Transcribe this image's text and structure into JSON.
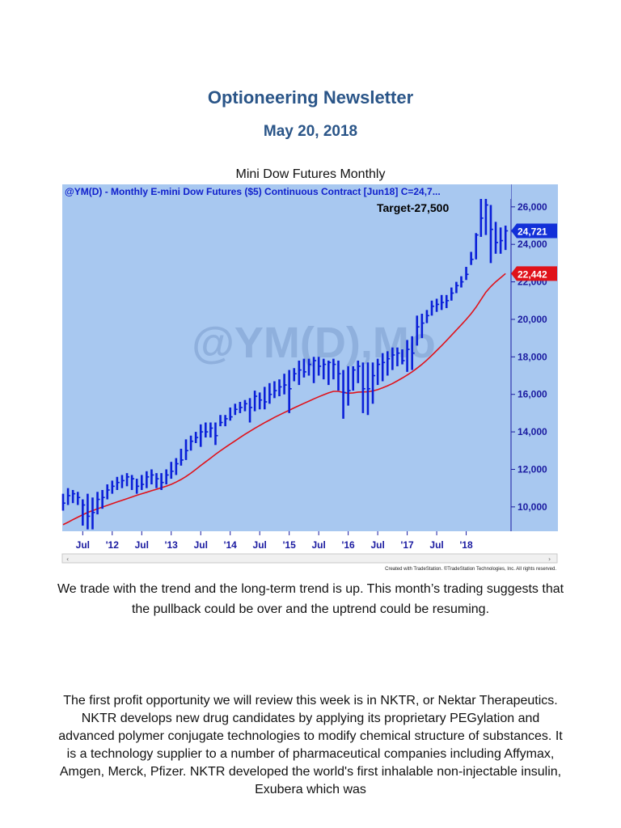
{
  "document": {
    "title": "Optioneering Newsletter",
    "date": "May 20, 2018",
    "chart_caption": "Mini Dow Futures Monthly",
    "paragraph1": "We trade with the trend and the long-term trend is up. This month’s trading suggests that the pullback could be over and the uptrend could be resuming.",
    "paragraph2": "The first profit opportunity we will review this week is in NKTR, or Nektar Therapeutics. NKTR develops new drug candidates by applying its proprietary PEGylation and advanced polymer conjugate technologies to modify chemical structure of substances. It is a technology supplier to a number of pharmaceutical companies including Affymax, Amgen, Merck, Pfizer. NKTR developed the world's first inhalable non-injectable insulin, Exubera which was"
  },
  "chart_data": {
    "type": "ohlc",
    "header": "@YM(D) - Monthly  E-mini Dow Futures ($5) Continuous Contract [Jun18]  C=24,7...",
    "watermark": "@YM(D),Mo",
    "annotation": "Target-27,500",
    "credit": "Created with TradeStation. ©TradeStation Technologies, Inc. All rights reserved.",
    "x_tick_labels": [
      "Jul",
      "'12",
      "Jul",
      "'13",
      "Jul",
      "'14",
      "Jul",
      "'15",
      "Jul",
      "'16",
      "Jul",
      "'17",
      "Jul",
      "'18"
    ],
    "y_tick_labels": [
      "26,000",
      "24,000",
      "22,000",
      "20,000",
      "18,000",
      "16,000",
      "14,000",
      "12,000",
      "10,000"
    ],
    "y_ticks": [
      26000,
      24000,
      22000,
      20000,
      18000,
      16000,
      14000,
      12000,
      10000
    ],
    "ylim": [
      8700,
      27200
    ],
    "last_close": 24721,
    "last_close_label": "24,721",
    "ma_value": 22442,
    "ma_label": "22,442",
    "colors": {
      "background": "#a8c8f0",
      "bars": "#0a1fd8",
      "moving_average": "#e0121a",
      "close_tag": "#1230d8",
      "ma_tag": "#e0121a",
      "header_text": "#1020cc",
      "axis_text": "#1a1aa0"
    },
    "series": [
      {
        "name": "price_close",
        "values": [
          10200,
          10600,
          10700,
          10500,
          10100,
          9500,
          9700,
          10400,
          10500,
          10900,
          11100,
          11300,
          11400,
          11600,
          11500,
          11100,
          11200,
          11600,
          11700,
          11500,
          11300,
          11700,
          11900,
          12300,
          12500,
          13000,
          13500,
          13700,
          14000,
          14000,
          14200,
          13800,
          14500,
          14700,
          14800,
          15200,
          15300,
          15500,
          15300,
          15900,
          15700,
          15600,
          16000,
          16200,
          16400,
          16500,
          16300,
          17100,
          17300,
          17200,
          17600,
          17800,
          17500,
          17600,
          17700,
          17600,
          17100,
          16100,
          16200,
          17300,
          17500,
          16300,
          16300,
          17000,
          17600,
          17700,
          17900,
          18100,
          18200,
          17800,
          18400,
          18200,
          19600,
          19800,
          20200,
          20700,
          20800,
          20900,
          21000,
          21400,
          21800,
          22000,
          22400,
          23200,
          24500,
          25400,
          26100,
          24800,
          24100,
          24200,
          24721
        ]
      },
      {
        "name": "price_high",
        "values": [
          10700,
          11000,
          10900,
          10800,
          10400,
          10700,
          10500,
          10800,
          10900,
          11200,
          11400,
          11600,
          11700,
          11800,
          11700,
          11500,
          11700,
          11900,
          12000,
          11800,
          11800,
          12000,
          12400,
          12600,
          13100,
          13600,
          13800,
          14000,
          14400,
          14500,
          14500,
          14500,
          14900,
          14900,
          15300,
          15500,
          15600,
          15700,
          15800,
          16200,
          16100,
          16400,
          16600,
          16700,
          16800,
          17100,
          17300,
          17400,
          17800,
          17900,
          17900,
          18000,
          18000,
          17900,
          17800,
          17900,
          17800,
          17300,
          17500,
          17500,
          17800,
          17700,
          17700,
          17700,
          17900,
          18200,
          18300,
          18500,
          18500,
          18400,
          18900,
          19100,
          20200,
          20300,
          20500,
          21000,
          21100,
          21300,
          21300,
          21700,
          22000,
          22300,
          22800,
          23600,
          24600,
          26700,
          26600,
          26100,
          25200,
          24900,
          25000
        ]
      },
      {
        "name": "price_low",
        "values": [
          9800,
          10100,
          10200,
          10100,
          9000,
          8800,
          8800,
          9600,
          9900,
          10400,
          10700,
          10900,
          11000,
          11100,
          10900,
          10700,
          10900,
          11000,
          11200,
          11000,
          10900,
          11200,
          11500,
          11700,
          12200,
          12500,
          13000,
          13400,
          13200,
          13700,
          13700,
          13300,
          14300,
          14300,
          14600,
          14900,
          15000,
          15100,
          14500,
          15100,
          15200,
          15200,
          15500,
          15800,
          15900,
          16000,
          15000,
          16700,
          16500,
          16900,
          17000,
          16600,
          17000,
          16800,
          16500,
          16800,
          16200,
          14700,
          15400,
          16200,
          16600,
          15000,
          14900,
          15500,
          16500,
          16700,
          17000,
          17300,
          17500,
          17600,
          17200,
          17300,
          18600,
          19000,
          19800,
          20200,
          20400,
          20500,
          20600,
          21000,
          21400,
          21700,
          22100,
          22900,
          23200,
          24400,
          24500,
          23000,
          23500,
          23500,
          23700
        ]
      },
      {
        "name": "moving_average",
        "values": [
          9050,
          9180,
          9320,
          9450,
          9580,
          9700,
          9800,
          9900,
          9990,
          10080,
          10170,
          10260,
          10350,
          10440,
          10530,
          10620,
          10700,
          10780,
          10860,
          10940,
          11020,
          11100,
          11200,
          11320,
          11460,
          11620,
          11800,
          12000,
          12200,
          12400,
          12600,
          12800,
          12990,
          13170,
          13350,
          13520,
          13700,
          13870,
          14030,
          14190,
          14340,
          14490,
          14630,
          14770,
          14900,
          15030,
          15150,
          15280,
          15400,
          15520,
          15640,
          15760,
          15870,
          15980,
          16080,
          16160,
          16160,
          16100,
          16060,
          16080,
          16120,
          16130,
          16140,
          16180,
          16250,
          16350,
          16460,
          16580,
          16720,
          16870,
          17030,
          17200,
          17400,
          17600,
          17830,
          18080,
          18340,
          18600,
          18870,
          19150,
          19430,
          19710,
          20000,
          20300,
          20650,
          21050,
          21450,
          21750,
          22000,
          22220,
          22442
        ]
      }
    ]
  }
}
